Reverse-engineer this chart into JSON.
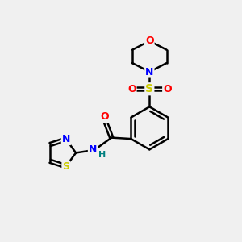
{
  "background_color": "#f0f0f0",
  "atom_colors": {
    "C": "#000000",
    "N": "#0000ff",
    "O": "#ff0000",
    "S": "#cccc00",
    "H": "#008080"
  },
  "bond_color": "#000000",
  "bond_width": 1.8,
  "figsize": [
    3.0,
    3.0
  ],
  "dpi": 100
}
